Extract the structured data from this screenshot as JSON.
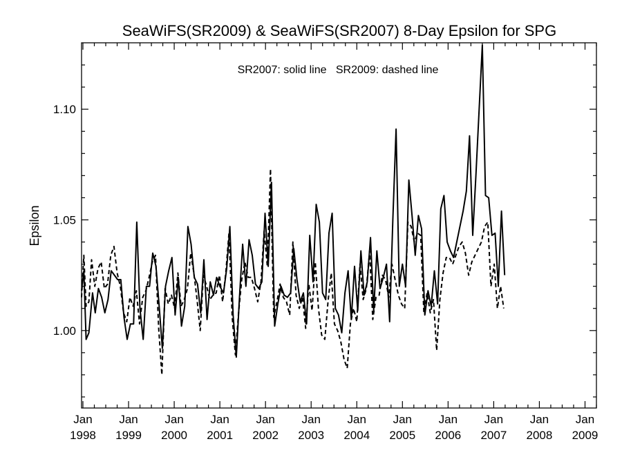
{
  "chart_data": {
    "type": "line",
    "title": "SeaWiFS(SR2009) & SeaWiFS(SR2007) 8-Day Epsilon for SPG",
    "annotation": "SR2007: solid line   SR2009: dashed line",
    "xlabel": "",
    "ylabel": "Epsilon",
    "xlim": [
      1997.97,
      2009.25
    ],
    "ylim": [
      0.965,
      1.13
    ],
    "grid": false,
    "x_ticks": [
      {
        "value": 1998,
        "month": "Jan",
        "year": "1998"
      },
      {
        "value": 1999,
        "month": "Jan",
        "year": "1999"
      },
      {
        "value": 2000,
        "month": "Jan",
        "year": "2000"
      },
      {
        "value": 2001,
        "month": "Jan",
        "year": "2001"
      },
      {
        "value": 2002,
        "month": "Jan",
        "year": "2002"
      },
      {
        "value": 2003,
        "month": "Jan",
        "year": "2003"
      },
      {
        "value": 2004,
        "month": "Jan",
        "year": "2004"
      },
      {
        "value": 2005,
        "month": "Jan",
        "year": "2005"
      },
      {
        "value": 2006,
        "month": "Jan",
        "year": "2006"
      },
      {
        "value": 2007,
        "month": "Jan",
        "year": "2007"
      },
      {
        "value": 2008,
        "month": "Jan",
        "year": "2008"
      },
      {
        "value": 2009,
        "month": "Jan",
        "year": "2009"
      }
    ],
    "y_ticks": [
      {
        "value": 1.0,
        "label": "1.00"
      },
      {
        "value": 1.05,
        "label": "1.05"
      },
      {
        "value": 1.1,
        "label": "1.10"
      }
    ],
    "series": [
      {
        "style": "solid",
        "points": [
          [
            1997.97,
            1.018
          ],
          [
            1998.02,
            1.027
          ],
          [
            1998.07,
            0.996
          ],
          [
            1998.13,
            0.999
          ],
          [
            1998.21,
            1.017
          ],
          [
            1998.27,
            1.008
          ],
          [
            1998.34,
            1.019
          ],
          [
            1998.41,
            1.015
          ],
          [
            1998.48,
            1.008
          ],
          [
            1998.55,
            1.014
          ],
          [
            1998.62,
            1.027
          ],
          [
            1998.69,
            1.025
          ],
          [
            1998.76,
            1.023
          ],
          [
            1998.83,
            1.023
          ],
          [
            1998.9,
            1.006
          ],
          [
            1998.97,
            0.996
          ],
          [
            1999.04,
            1.003
          ],
          [
            1999.11,
            1.003
          ],
          [
            1999.18,
            1.049
          ],
          [
            1999.25,
            1.01
          ],
          [
            1999.32,
            0.996
          ],
          [
            1999.39,
            1.02
          ],
          [
            1999.46,
            1.02
          ],
          [
            1999.53,
            1.035
          ],
          [
            1999.6,
            1.029
          ],
          [
            1999.67,
            1.011
          ],
          [
            1999.74,
            0.992
          ],
          [
            1999.81,
            1.02
          ],
          [
            1999.88,
            1.027
          ],
          [
            1999.95,
            1.033
          ],
          [
            2000.02,
            1.007
          ],
          [
            2000.09,
            1.024
          ],
          [
            2000.16,
            1.002
          ],
          [
            2000.23,
            1.011
          ],
          [
            2000.3,
            1.047
          ],
          [
            2000.37,
            1.039
          ],
          [
            2000.44,
            1.024
          ],
          [
            2000.51,
            1.021
          ],
          [
            2000.58,
            1.008
          ],
          [
            2000.65,
            1.032
          ],
          [
            2000.72,
            1.005
          ],
          [
            2000.79,
            1.022
          ],
          [
            2000.86,
            1.016
          ],
          [
            2000.93,
            1.024
          ],
          [
            2001.0,
            1.02
          ],
          [
            2001.08,
            1.017
          ],
          [
            2001.15,
            1.028
          ],
          [
            2001.22,
            1.047
          ],
          [
            2001.29,
            1.007
          ],
          [
            2001.36,
            0.988
          ],
          [
            2001.43,
            1.015
          ],
          [
            2001.5,
            1.039
          ],
          [
            2001.57,
            1.02
          ],
          [
            2001.64,
            1.041
          ],
          [
            2001.71,
            1.034
          ],
          [
            2001.78,
            1.021
          ],
          [
            2001.85,
            1.019
          ],
          [
            2001.92,
            1.022
          ],
          [
            2001.99,
            1.053
          ],
          [
            2002.06,
            1.029
          ],
          [
            2002.13,
            1.067
          ],
          [
            2002.2,
            1.002
          ],
          [
            2002.27,
            1.012
          ],
          [
            2002.34,
            1.02
          ],
          [
            2002.41,
            1.016
          ],
          [
            2002.48,
            1.015
          ],
          [
            2002.55,
            1.017
          ],
          [
            2002.62,
            1.037
          ],
          [
            2002.69,
            1.023
          ],
          [
            2002.76,
            1.013
          ],
          [
            2002.83,
            1.017
          ],
          [
            2002.9,
            1.003
          ],
          [
            2002.97,
            1.043
          ],
          [
            2003.04,
            1.022
          ],
          [
            2003.11,
            1.057
          ],
          [
            2003.18,
            1.049
          ],
          [
            2003.25,
            1.017
          ],
          [
            2003.32,
            1.014
          ],
          [
            2003.39,
            1.044
          ],
          [
            2003.46,
            1.053
          ],
          [
            2003.53,
            1.01
          ],
          [
            2003.6,
            1.007
          ],
          [
            2003.67,
            0.999
          ],
          [
            2003.74,
            1.017
          ],
          [
            2003.81,
            1.027
          ],
          [
            2003.88,
            1.005
          ],
          [
            2003.95,
            1.029
          ],
          [
            2004.02,
            1.009
          ],
          [
            2004.09,
            1.036
          ],
          [
            2004.16,
            1.016
          ],
          [
            2004.23,
            1.022
          ],
          [
            2004.3,
            1.042
          ],
          [
            2004.37,
            1.009
          ],
          [
            2004.44,
            1.036
          ],
          [
            2004.51,
            1.019
          ],
          [
            2004.58,
            1.024
          ],
          [
            2004.65,
            1.03
          ],
          [
            2004.72,
            1.004
          ],
          [
            2004.79,
            1.05
          ],
          [
            2004.86,
            1.091
          ],
          [
            2004.93,
            1.02
          ],
          [
            2005.0,
            1.03
          ],
          [
            2005.07,
            1.02
          ],
          [
            2005.14,
            1.068
          ],
          [
            2005.21,
            1.052
          ],
          [
            2005.28,
            1.034
          ],
          [
            2005.35,
            1.052
          ],
          [
            2005.42,
            1.046
          ],
          [
            2005.49,
            1.007
          ],
          [
            2005.56,
            1.018
          ],
          [
            2005.63,
            1.011
          ],
          [
            2005.7,
            1.027
          ],
          [
            2005.77,
            1.012
          ],
          [
            2005.84,
            1.055
          ],
          [
            2005.91,
            1.061
          ],
          [
            2005.98,
            1.04
          ],
          [
            2006.05,
            1.036
          ],
          [
            2006.12,
            1.033
          ],
          [
            2006.19,
            1.04
          ],
          [
            2006.26,
            1.047
          ],
          [
            2006.33,
            1.054
          ],
          [
            2006.4,
            1.063
          ],
          [
            2006.47,
            1.088
          ],
          [
            2006.54,
            1.043
          ],
          [
            2006.61,
            1.07
          ],
          [
            2006.68,
            1.1
          ],
          [
            2006.75,
            1.129
          ],
          [
            2006.82,
            1.061
          ],
          [
            2006.89,
            1.06
          ],
          [
            2006.96,
            1.043
          ],
          [
            2007.03,
            1.044
          ],
          [
            2007.1,
            1.02
          ],
          [
            2007.17,
            1.054
          ],
          [
            2007.24,
            1.025
          ]
        ]
      },
      {
        "style": "dashed",
        "points": [
          [
            1997.97,
            1.015
          ],
          [
            1998.02,
            1.034
          ],
          [
            1998.07,
            1.011
          ],
          [
            1998.13,
            1.013
          ],
          [
            1998.19,
            1.032
          ],
          [
            1998.26,
            1.02
          ],
          [
            1998.33,
            1.028
          ],
          [
            1998.4,
            1.031
          ],
          [
            1998.47,
            1.019
          ],
          [
            1998.54,
            1.021
          ],
          [
            1998.61,
            1.034
          ],
          [
            1998.68,
            1.038
          ],
          [
            1998.75,
            1.026
          ],
          [
            1998.82,
            1.02
          ],
          [
            1998.89,
            1.008
          ],
          [
            1998.96,
            1.004
          ],
          [
            1999.03,
            1.015
          ],
          [
            1999.1,
            1.011
          ],
          [
            1999.17,
            1.018
          ],
          [
            1999.24,
            1.003
          ],
          [
            1999.31,
            1.015
          ],
          [
            1999.38,
            1.018
          ],
          [
            1999.45,
            1.024
          ],
          [
            1999.52,
            1.031
          ],
          [
            1999.59,
            1.034
          ],
          [
            1999.66,
            1.001
          ],
          [
            1999.73,
            0.98
          ],
          [
            1999.8,
            1.019
          ],
          [
            1999.87,
            1.012
          ],
          [
            1999.94,
            1.016
          ],
          [
            2000.01,
            1.01
          ],
          [
            2000.08,
            1.026
          ],
          [
            2000.15,
            1.011
          ],
          [
            2000.22,
            1.014
          ],
          [
            2000.29,
            1.019
          ],
          [
            2000.36,
            1.035
          ],
          [
            2000.43,
            1.026
          ],
          [
            2000.5,
            1.014
          ],
          [
            2000.57,
            1.0
          ],
          [
            2000.64,
            1.025
          ],
          [
            2000.71,
            1.02
          ],
          [
            2000.78,
            1.014
          ],
          [
            2000.85,
            1.016
          ],
          [
            2000.92,
            1.017
          ],
          [
            2000.99,
            1.025
          ],
          [
            2001.06,
            1.013
          ],
          [
            2001.13,
            1.026
          ],
          [
            2001.2,
            1.044
          ],
          [
            2001.27,
            1.006
          ],
          [
            2001.34,
            0.989
          ],
          [
            2001.41,
            1.008
          ],
          [
            2001.48,
            1.023
          ],
          [
            2001.55,
            1.031
          ],
          [
            2001.62,
            1.024
          ],
          [
            2001.69,
            1.024
          ],
          [
            2001.76,
            1.019
          ],
          [
            2001.83,
            1.013
          ],
          [
            2001.9,
            1.022
          ],
          [
            2001.97,
            1.045
          ],
          [
            2002.04,
            1.029
          ],
          [
            2002.11,
            1.073
          ],
          [
            2002.18,
            1.006
          ],
          [
            2002.25,
            1.013
          ],
          [
            2002.32,
            1.021
          ],
          [
            2002.39,
            1.015
          ],
          [
            2002.46,
            1.013
          ],
          [
            2002.53,
            1.007
          ],
          [
            2002.6,
            1.04
          ],
          [
            2002.67,
            1.016
          ],
          [
            2002.74,
            1.01
          ],
          [
            2002.81,
            1.015
          ],
          [
            2002.88,
            1.001
          ],
          [
            2002.95,
            1.021
          ],
          [
            2003.02,
            1.009
          ],
          [
            2003.09,
            1.031
          ],
          [
            2003.16,
            1.01
          ],
          [
            2003.23,
            0.998
          ],
          [
            2003.3,
            0.996
          ],
          [
            2003.37,
            1.013
          ],
          [
            2003.44,
            1.026
          ],
          [
            2003.51,
            1.003
          ],
          [
            2003.58,
            1.0
          ],
          [
            2003.65,
            0.995
          ],
          [
            2003.72,
            0.987
          ],
          [
            2003.79,
            0.983
          ],
          [
            2003.86,
            1.003
          ],
          [
            2003.93,
            1.01
          ],
          [
            2004.0,
            1.004
          ],
          [
            2004.07,
            1.03
          ],
          [
            2004.14,
            1.014
          ],
          [
            2004.21,
            1.019
          ],
          [
            2004.28,
            1.036
          ],
          [
            2004.35,
            1.005
          ],
          [
            2004.42,
            1.015
          ],
          [
            2004.49,
            1.016
          ],
          [
            2004.56,
            1.025
          ],
          [
            2004.63,
            1.023
          ],
          [
            2004.7,
            1.015
          ],
          [
            2004.77,
            1.03
          ],
          [
            2004.84,
            1.023
          ],
          [
            2004.91,
            1.016
          ],
          [
            2004.98,
            1.012
          ],
          [
            2005.05,
            1.01
          ],
          [
            2005.12,
            1.049
          ],
          [
            2005.19,
            1.047
          ],
          [
            2005.26,
            1.04
          ],
          [
            2005.33,
            1.044
          ],
          [
            2005.4,
            1.043
          ],
          [
            2005.47,
            1.008
          ],
          [
            2005.54,
            1.017
          ],
          [
            2005.61,
            1.008
          ],
          [
            2005.68,
            1.014
          ],
          [
            2005.75,
            0.991
          ],
          [
            2005.82,
            1.014
          ],
          [
            2005.89,
            1.026
          ],
          [
            2005.96,
            1.033
          ],
          [
            2006.03,
            1.033
          ],
          [
            2006.1,
            1.03
          ],
          [
            2006.17,
            1.034
          ],
          [
            2006.24,
            1.038
          ],
          [
            2006.31,
            1.04
          ],
          [
            2006.38,
            1.035
          ],
          [
            2006.45,
            1.025
          ],
          [
            2006.52,
            1.031
          ],
          [
            2006.59,
            1.034
          ],
          [
            2006.66,
            1.037
          ],
          [
            2006.73,
            1.04
          ],
          [
            2006.8,
            1.047
          ],
          [
            2006.87,
            1.049
          ],
          [
            2006.94,
            1.02
          ],
          [
            2007.01,
            1.03
          ],
          [
            2007.08,
            1.01
          ],
          [
            2007.15,
            1.02
          ],
          [
            2007.22,
            1.01
          ]
        ]
      }
    ]
  }
}
